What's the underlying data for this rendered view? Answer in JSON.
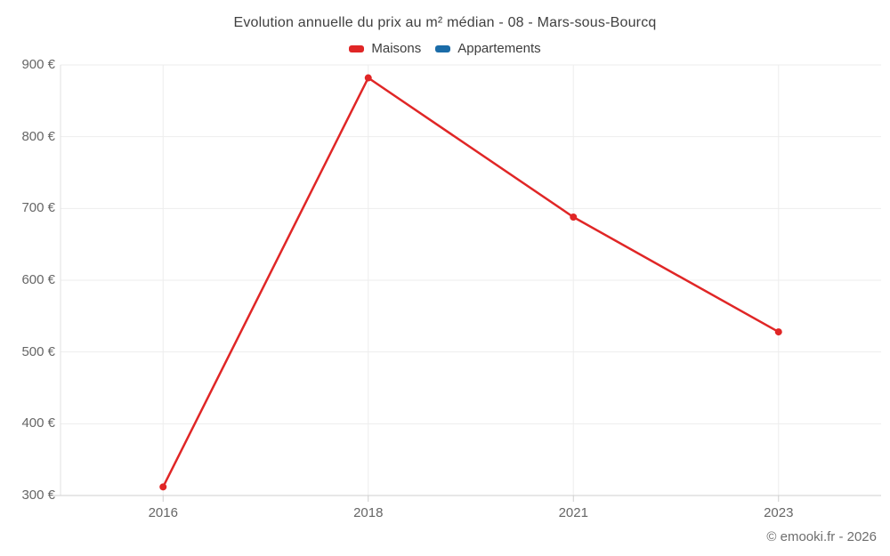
{
  "header": {
    "title": "Evolution annuelle du prix au m² médian - 08 - Mars-sous-Bourcq"
  },
  "legend": {
    "items": [
      {
        "label": "Maisons",
        "color": "#e02626"
      },
      {
        "label": "Appartements",
        "color": "#1b6ca8"
      }
    ]
  },
  "credits": {
    "label": "© emooki.fr - 2026"
  },
  "chart_data": {
    "type": "line",
    "title": "Evolution annuelle du prix au m² médian - 08 - Mars-sous-Bourcq",
    "categories": [
      "2016",
      "2018",
      "2021",
      "2023"
    ],
    "series": [
      {
        "name": "Maisons",
        "color": "#e02626",
        "values": [
          312,
          882,
          688,
          528
        ]
      },
      {
        "name": "Appartements",
        "color": "#1b6ca8",
        "values": []
      }
    ],
    "xlabel": "",
    "ylabel": "",
    "ylim": [
      300,
      900
    ],
    "yticks": [
      {
        "value": 300,
        "label": "300 €"
      },
      {
        "value": 400,
        "label": "400 €"
      },
      {
        "value": 500,
        "label": "500 €"
      },
      {
        "value": 600,
        "label": "600 €"
      },
      {
        "value": 700,
        "label": "700 €"
      },
      {
        "value": 800,
        "label": "800 €"
      },
      {
        "value": 900,
        "label": "900 €"
      }
    ],
    "grid": true,
    "legend_position": "top",
    "colors": {
      "gridline": "#ededed",
      "axis_left": "#e2e2e2",
      "axis_bottom": "#cfcfcf",
      "tick": "#cfcfcf",
      "background": "#ffffff"
    }
  }
}
